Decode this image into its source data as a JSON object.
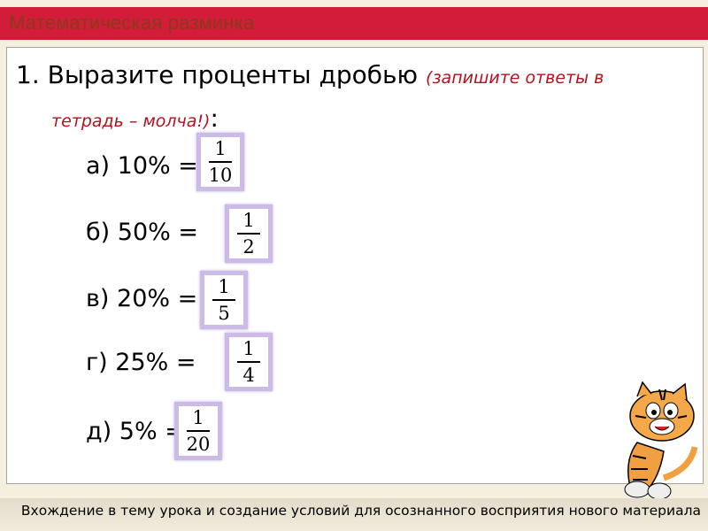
{
  "header": {
    "title": "Математическая разминка"
  },
  "question": {
    "text": "1. Выразите проценты дробью",
    "note_line1": "(запишите ответы в",
    "note_line2": "тетрадь – молча!)",
    "colon": ":"
  },
  "items": [
    {
      "label": "а) 10% =",
      "num": "1",
      "den": "10"
    },
    {
      "label": "б) 50% =",
      "num": "1",
      "den": "2"
    },
    {
      "label": "в) 20% =",
      "num": "1",
      "den": "5"
    },
    {
      "label": "г) 25% =",
      "num": "1",
      "den": "4"
    },
    {
      "label": "д) 5% =",
      "num": "1",
      "den": "20"
    }
  ],
  "footer": {
    "text": "Вхождение в тему урока и создание условий для осознанного восприятия нового материала"
  },
  "colors": {
    "header_bar": "#d21c3a",
    "note": "#b3121f",
    "answer_box": "#cbbbe6"
  }
}
